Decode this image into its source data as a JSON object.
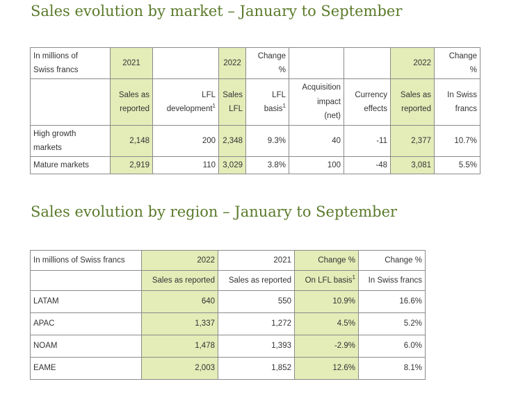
{
  "market_section": {
    "title": "Sales evolution by market – January to September",
    "header1": {
      "label": "In millions of\nSwiss francs",
      "y2021": "2021",
      "blank1": "",
      "y2022": "2022",
      "change": "Change\n%",
      "blank2": "",
      "blank3": "",
      "y2022b": "2022",
      "change2": "Change\n%"
    },
    "header2": {
      "blank": "",
      "sales_reported": "Sales as\nreported",
      "lfl_dev": "LFL\ndevelopment",
      "sales_lfl": "Sales\nLFL",
      "lfl_basis": "LFL\nbasis",
      "acq": "Acquisition\nimpact\n(net)",
      "currency": "Currency\neffects",
      "sales_reported2": "Sales as\nreported",
      "swiss": "In Swiss\nfrancs",
      "footnote": "1"
    },
    "rows": [
      {
        "market": "High growth\nmarkets",
        "v2021": "2,148",
        "lfl_dev": "200",
        "sales_lfl": "2,348",
        "lfl_basis": "9.3%",
        "acq": "40",
        "currency": "-11",
        "v2022": "2,377",
        "chf": "10.7%"
      },
      {
        "market": "Mature markets",
        "v2021": "2,919",
        "lfl_dev": "110",
        "sales_lfl": "3,029",
        "lfl_basis": "3.8%",
        "acq": "100",
        "currency": "-48",
        "v2022": "3,081",
        "chf": "5.5%"
      }
    ]
  },
  "region_section": {
    "title": "Sales evolution by region – January to September",
    "header1": {
      "label": "In millions of Swiss francs",
      "y2022": "2022",
      "y2021": "2021",
      "change_lfl": "Change %",
      "change_chf": "Change %"
    },
    "header2": {
      "blank": "",
      "sr2022": "Sales as reported",
      "sr2021": "Sales as reported",
      "on_lfl": "On LFL basis",
      "footnote": "1",
      "in_chf": "In Swiss francs"
    },
    "rows": [
      {
        "region": "LATAM",
        "v2022": "640",
        "v2021": "550",
        "lfl": "10.9%",
        "chf": "16.6%"
      },
      {
        "region": "APAC",
        "v2022": "1,337",
        "v2021": "1,272",
        "lfl": "4.5%",
        "chf": "5.2%"
      },
      {
        "region": "NOAM",
        "v2022": "1,478",
        "v2021": "1,393",
        "lfl": "-2.9%",
        "chf": "6.0%"
      },
      {
        "region": "EAME",
        "v2022": "2,003",
        "v2021": "1,852",
        "lfl": "12.6%",
        "chf": "8.1%"
      }
    ]
  },
  "colors": {
    "title": "#5a7a2a",
    "highlight": "#e4ecb8",
    "border": "#8a8a8a"
  }
}
